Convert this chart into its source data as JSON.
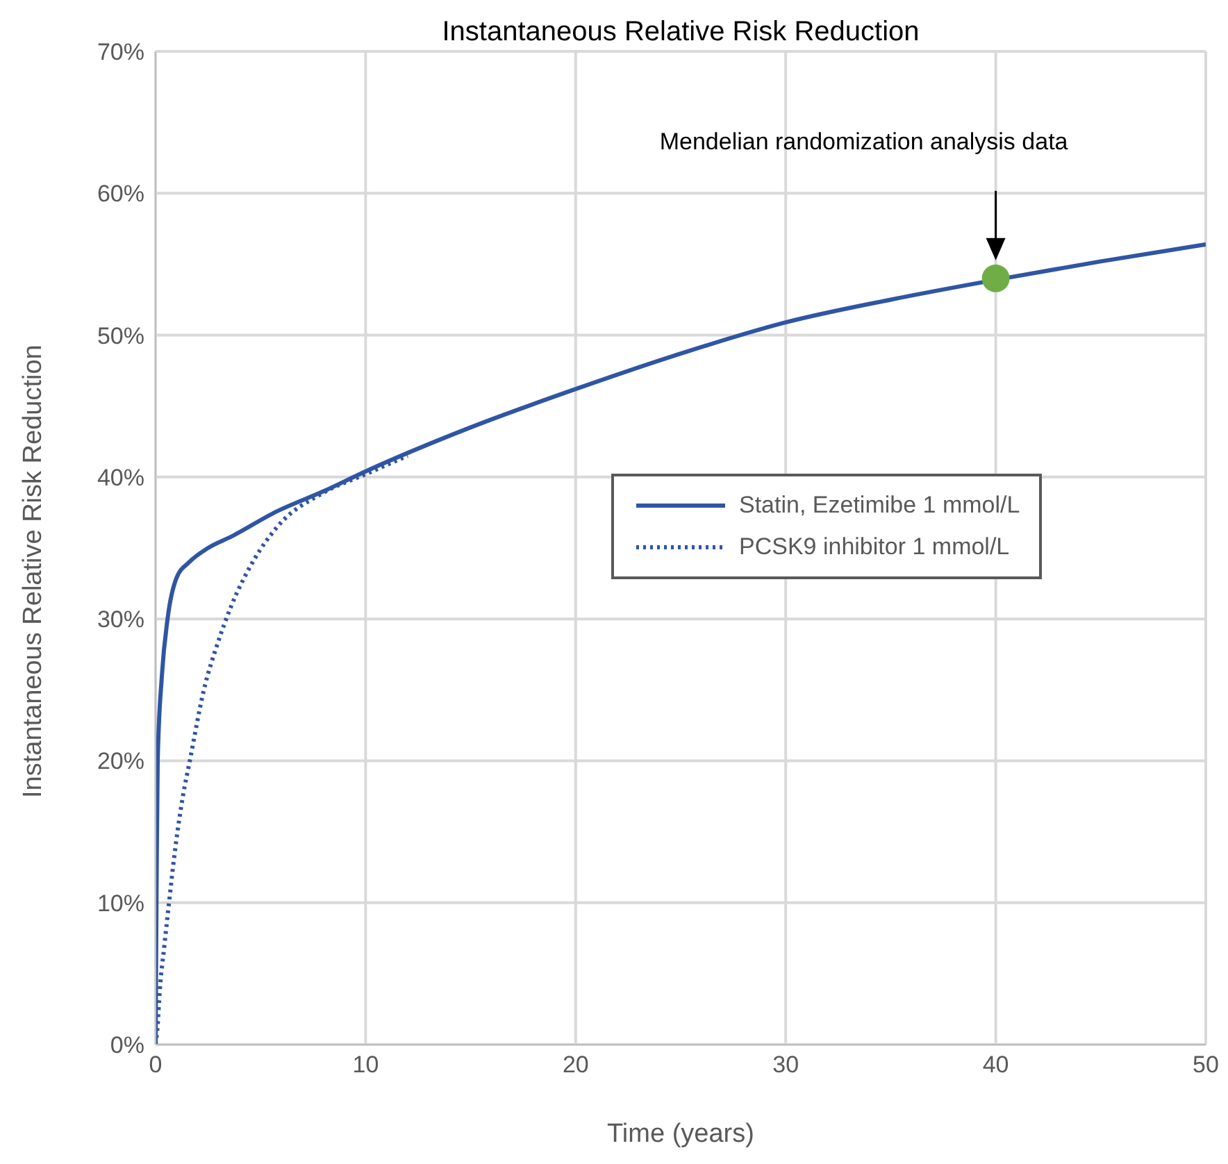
{
  "chart_data": {
    "type": "line",
    "title": "Instantaneous Relative Risk Reduction",
    "xlabel": "Time (years)",
    "ylabel": "Instantaneous Relative Risk Reduction",
    "xlim": [
      0,
      50
    ],
    "xticks": [
      0,
      10,
      20,
      30,
      40,
      50
    ],
    "ylim": [
      0,
      70
    ],
    "yticks": [
      {
        "value": 0,
        "label": "0%"
      },
      {
        "value": 10,
        "label": "10%"
      },
      {
        "value": 20,
        "label": "20%"
      },
      {
        "value": 30,
        "label": "30%"
      },
      {
        "value": 40,
        "label": "40%"
      },
      {
        "value": 50,
        "label": "50%"
      },
      {
        "value": 60,
        "label": "60%"
      },
      {
        "value": 70,
        "label": "70%"
      }
    ],
    "grid": true,
    "legend": "right",
    "marker": "none",
    "annotations": [
      "Mendelian randomization analysis data"
    ],
    "series": [
      {
        "name": "Statin, Ezetimibe 1 mmol/L",
        "color": "#2f55a4",
        "line_style": "solid",
        "x": [
          0,
          0.05,
          0.1,
          0.3,
          0.57,
          1,
          1.6,
          2.5,
          3.6,
          5.8,
          8,
          10,
          15,
          20,
          25,
          30,
          35,
          40,
          45,
          50
        ],
        "values": [
          0,
          12,
          20,
          26,
          30,
          32.9,
          34,
          35,
          35.8,
          37.6,
          39,
          40.4,
          43.5,
          46.2,
          48.7,
          50.9,
          52.5,
          53.9,
          55.2,
          56.4
        ]
      },
      {
        "name": "PCSK9 inhibitor 1 mmol/L",
        "color": "#2f55a4",
        "line_style": "dotted",
        "x": [
          0,
          0.09,
          0.2,
          0.42,
          0.64,
          0.97,
          1.3,
          1.63,
          2.3,
          2.96,
          3.6,
          4.7,
          5.8,
          8,
          10,
          12
        ],
        "values": [
          0,
          1.2,
          3.8,
          7,
          10,
          14.2,
          17.5,
          20,
          25,
          28.3,
          30.9,
          34.2,
          36.5,
          38.9,
          40.2,
          41.5
        ]
      },
      {
        "type": "scatter",
        "color": "#70ad47",
        "marker": "circle",
        "x": [
          40
        ],
        "values": [
          54
        ]
      }
    ]
  }
}
